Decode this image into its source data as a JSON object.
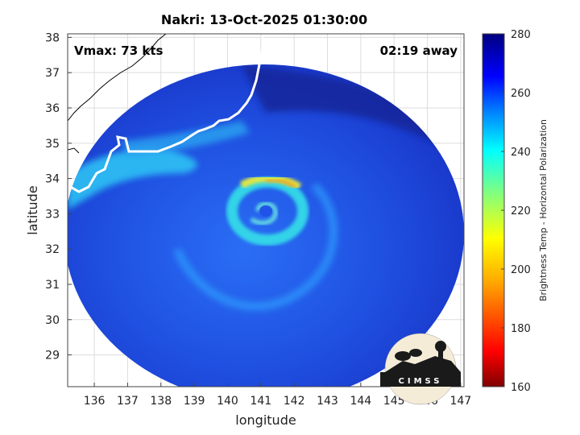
{
  "chart_data": {
    "type": "heatmap",
    "title": "Nakri: 13-Oct-2025 01:30:00",
    "xlabel": "longitude",
    "ylabel": "latitude",
    "xlim": [
      135.2,
      147.1
    ],
    "ylim": [
      28.1,
      38.1
    ],
    "x_ticks": [
      136,
      137,
      138,
      139,
      140,
      141,
      142,
      143,
      144,
      145,
      146,
      147
    ],
    "y_ticks": [
      29,
      30,
      31,
      32,
      33,
      34,
      35,
      36,
      37,
      38
    ],
    "grid": true,
    "annotations": {
      "vmax": "Vmax: 73 kts",
      "time_away": "02:19 away"
    },
    "colorbar": {
      "label": "Brightness Temp - Horizontal Polarization",
      "range": [
        160,
        280
      ],
      "ticks": [
        160,
        180,
        200,
        220,
        240,
        260,
        280
      ],
      "colormap": "jet"
    },
    "storm_center": {
      "lon": 141.2,
      "lat": 33.3
    },
    "swath_center": {
      "lon": 141.3,
      "lat": 33.2
    }
  },
  "logo": {
    "text": "CIMSS"
  },
  "colors": {
    "background_field": "#1a3fd8",
    "coast": "#ffffff",
    "land_line": "#000000"
  }
}
